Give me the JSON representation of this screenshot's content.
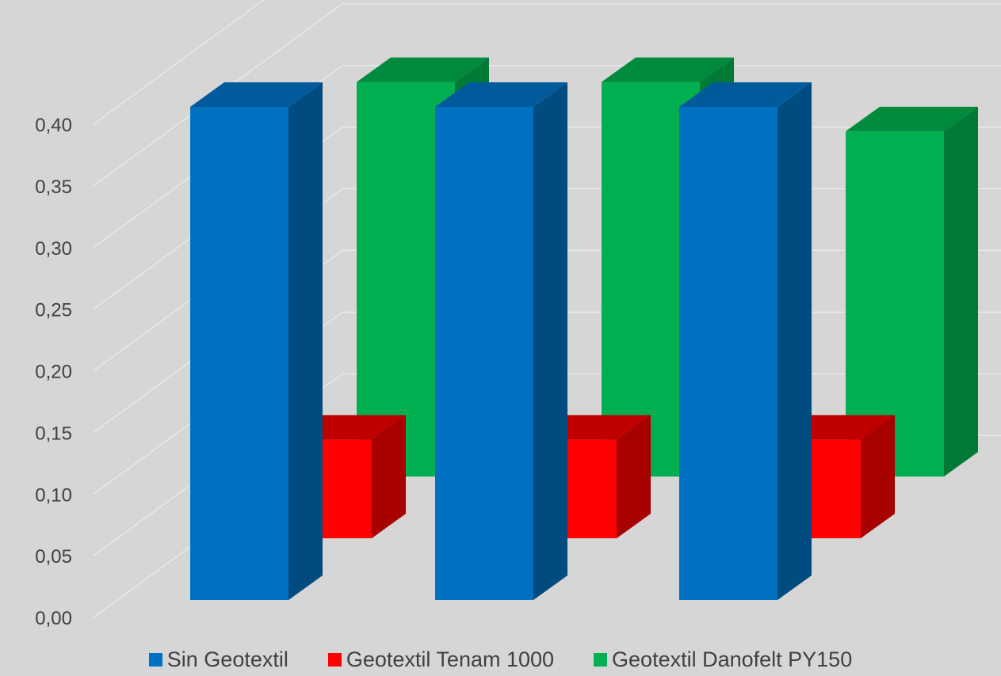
{
  "chart_data": {
    "type": "bar",
    "style": "3d-column",
    "categories": [
      "",
      "",
      ""
    ],
    "series": [
      {
        "name": "Sin Geotextil",
        "values": [
          0.4,
          0.4,
          0.4
        ],
        "color": "#0070c0",
        "side_color": "#004b80",
        "top_color": "#005a9c"
      },
      {
        "name": "Geotextil Tenam 1000",
        "values": [
          0.08,
          0.08,
          0.08
        ],
        "color": "#ff0000",
        "side_color": "#a80000",
        "top_color": "#c00000"
      },
      {
        "name": "Geotextil Danofelt PY150",
        "values": [
          0.32,
          0.32,
          0.28
        ],
        "color": "#00b050",
        "side_color": "#007a36",
        "top_color": "#008a3e"
      }
    ],
    "y_ticks": [
      "0,00",
      "0,05",
      "0,10",
      "0,15",
      "0,20",
      "0,25",
      "0,30",
      "0,35",
      "0,40"
    ],
    "ylim": [
      0,
      0.4
    ],
    "grid": true,
    "legend_position": "bottom",
    "title": "",
    "xlabel": "",
    "ylabel": ""
  }
}
